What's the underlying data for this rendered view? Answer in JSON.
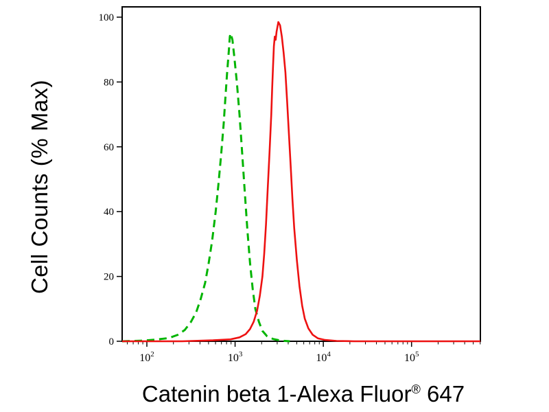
{
  "figure": {
    "background": "#ffffff",
    "axis_color": "#000000"
  },
  "chart_data": {
    "type": "line",
    "chart_kind": "flow-cytometry-histogram",
    "title": "",
    "xlabel": "Catenin beta 1-Alexa Fluor® 647",
    "xlabel_parts": {
      "main": "Catenin beta 1-Alexa Fluor",
      "registered_mark": "®",
      "suffix": " 647"
    },
    "ylabel": "Cell Counts (% Max)",
    "x_scale": "log10",
    "x_log_range": [
      1.72,
      5.78
    ],
    "x_major_tick_exponents": [
      2,
      3,
      4,
      5
    ],
    "x_tick_label_base": "10",
    "ylim": [
      0,
      100
    ],
    "y_ticks": [
      0,
      20,
      40,
      60,
      80,
      100
    ],
    "grid": false,
    "legend_position": "none",
    "series": [
      {
        "name": "green-dashed-control",
        "color": "#00b400",
        "line_style": "dashed",
        "peak_log10_x": 2.95,
        "peak_percent_max": 95,
        "points": [
          [
            1.72,
            0
          ],
          [
            1.95,
            0.2
          ],
          [
            2.1,
            0.5
          ],
          [
            2.25,
            1
          ],
          [
            2.35,
            2
          ],
          [
            2.43,
            3.5
          ],
          [
            2.5,
            6
          ],
          [
            2.56,
            9
          ],
          [
            2.61,
            13
          ],
          [
            2.66,
            18
          ],
          [
            2.7,
            24
          ],
          [
            2.74,
            31
          ],
          [
            2.78,
            40
          ],
          [
            2.81,
            48
          ],
          [
            2.84,
            57
          ],
          [
            2.87,
            67
          ],
          [
            2.89,
            75
          ],
          [
            2.91,
            83
          ],
          [
            2.93,
            90
          ],
          [
            2.94,
            94
          ],
          [
            2.95,
            95
          ],
          [
            2.97,
            93
          ],
          [
            2.99,
            88
          ],
          [
            3.02,
            80
          ],
          [
            3.05,
            70
          ],
          [
            3.08,
            58
          ],
          [
            3.11,
            46
          ],
          [
            3.14,
            34
          ],
          [
            3.17,
            24
          ],
          [
            3.2,
            16
          ],
          [
            3.23,
            10
          ],
          [
            3.27,
            6
          ],
          [
            3.31,
            3.2
          ],
          [
            3.36,
            1.6
          ],
          [
            3.43,
            0.7
          ],
          [
            3.52,
            0.2
          ],
          [
            3.62,
            0
          ]
        ]
      },
      {
        "name": "red-solid-catenin-beta-1",
        "color": "#ed1111",
        "line_style": "solid",
        "peak_log10_x": 3.49,
        "peak_percent_max": 98.5,
        "points": [
          [
            1.72,
            0
          ],
          [
            2.4,
            0
          ],
          [
            2.75,
            0.3
          ],
          [
            2.95,
            0.6
          ],
          [
            3.05,
            1.2
          ],
          [
            3.12,
            2.2
          ],
          [
            3.17,
            3.8
          ],
          [
            3.21,
            6
          ],
          [
            3.25,
            9.5
          ],
          [
            3.28,
            14
          ],
          [
            3.31,
            20
          ],
          [
            3.33,
            27
          ],
          [
            3.35,
            36
          ],
          [
            3.37,
            47
          ],
          [
            3.39,
            58
          ],
          [
            3.41,
            70
          ],
          [
            3.42,
            78
          ],
          [
            3.43,
            85
          ],
          [
            3.44,
            91
          ],
          [
            3.45,
            94
          ],
          [
            3.46,
            93
          ],
          [
            3.47,
            95.5
          ],
          [
            3.49,
            98.5
          ],
          [
            3.51,
            97.5
          ],
          [
            3.53,
            94
          ],
          [
            3.55,
            89
          ],
          [
            3.57,
            83
          ],
          [
            3.59,
            74
          ],
          [
            3.61,
            64
          ],
          [
            3.63,
            54
          ],
          [
            3.65,
            44
          ],
          [
            3.67,
            35
          ],
          [
            3.7,
            25
          ],
          [
            3.73,
            17
          ],
          [
            3.76,
            11
          ],
          [
            3.79,
            7
          ],
          [
            3.83,
            4
          ],
          [
            3.88,
            2
          ],
          [
            3.94,
            0.9
          ],
          [
            4.02,
            0.4
          ],
          [
            4.15,
            0.1
          ],
          [
            4.35,
            0
          ],
          [
            5.78,
            0
          ]
        ]
      }
    ]
  }
}
